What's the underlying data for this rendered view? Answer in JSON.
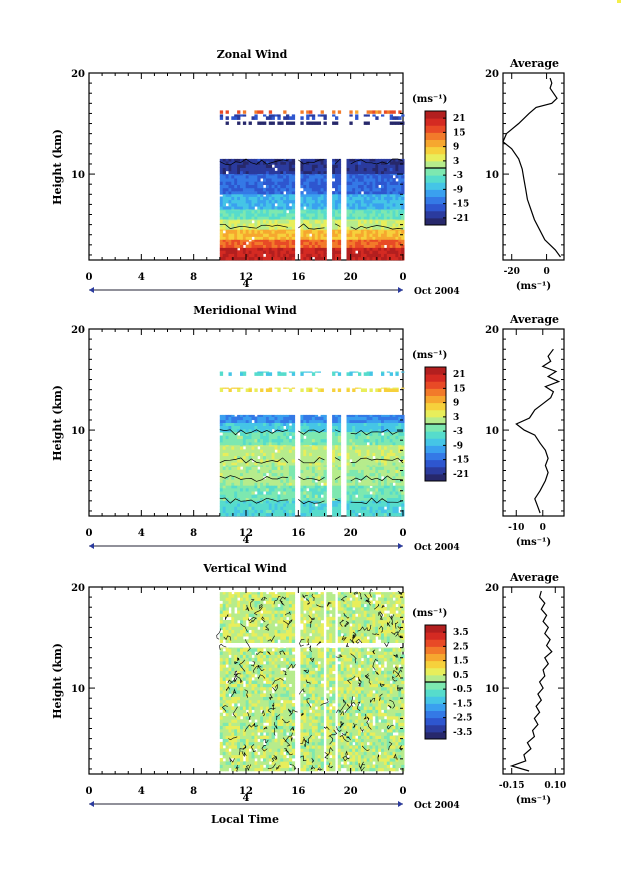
{
  "chart_data": [
    {
      "type": "heatmap",
      "title": "Zonal Wind",
      "ylabel": "Height (km)",
      "yticks": [
        "20",
        "10"
      ],
      "ylim": [
        1.5,
        20
      ],
      "xticks": [
        "0",
        "4",
        "8",
        "12",
        "16",
        "20",
        "0"
      ],
      "xlim": [
        0,
        24
      ],
      "date_marker": "4",
      "date_label": "Oct 2004",
      "colorbar": {
        "unit": "(ms⁻¹)",
        "ticks": [
          "21",
          "15",
          "9",
          "3",
          "-3",
          "-9",
          "-15",
          "-21"
        ],
        "range": [
          -24,
          24
        ],
        "zero_line": true
      },
      "data_x_start": 10,
      "data_gaps": [
        [
          15.6,
          16
        ],
        [
          18.1,
          18.5
        ],
        [
          19.2,
          19.6
        ]
      ],
      "layers": [
        {
          "from": 11.5,
          "to": 10.0,
          "value": -20
        },
        {
          "from": 10.0,
          "to": 8.0,
          "value": -15
        },
        {
          "from": 8.0,
          "to": 6.5,
          "value": -9
        },
        {
          "from": 6.5,
          "to": 5.5,
          "value": -3
        },
        {
          "from": 5.5,
          "to": 4.5,
          "value": 3
        },
        {
          "from": 4.5,
          "to": 3.5,
          "value": 9
        },
        {
          "from": 3.5,
          "to": 2.7,
          "value": 15
        },
        {
          "from": 2.7,
          "to": 1.5,
          "value": 21
        }
      ],
      "upper_layers": [
        {
          "from": 16.3,
          "to": 16.0,
          "value": 14
        },
        {
          "from": 15.9,
          "to": 15.4,
          "value": -18
        },
        {
          "from": 15.2,
          "to": 14.9,
          "value": -24
        }
      ],
      "average": {
        "title": "Average",
        "xlabel": "(ms⁻¹)",
        "xticks": [
          "-20",
          "0"
        ],
        "xlim": [
          -25,
          10
        ],
        "profile": [
          [
            1.8,
            8
          ],
          [
            2.5,
            5
          ],
          [
            3.5,
            -1
          ],
          [
            4.5,
            -4
          ],
          [
            5.5,
            -7
          ],
          [
            6.5,
            -9
          ],
          [
            7.5,
            -11
          ],
          [
            8.5,
            -12
          ],
          [
            9.5,
            -13
          ],
          [
            10.5,
            -14
          ],
          [
            11.5,
            -16
          ],
          [
            12.5,
            -20
          ],
          [
            13.2,
            -25
          ],
          [
            14,
            -23
          ],
          [
            15,
            -16
          ],
          [
            16,
            -10
          ],
          [
            16.6,
            -6
          ],
          [
            17,
            3
          ],
          [
            17.5,
            6
          ],
          [
            18,
            4
          ],
          [
            18.5,
            2
          ],
          [
            19,
            3
          ],
          [
            19.5,
            2
          ]
        ]
      }
    },
    {
      "type": "heatmap",
      "title": "Meridional Wind",
      "ylabel": "Height (km)",
      "yticks": [
        "20",
        "10"
      ],
      "ylim": [
        1.5,
        20
      ],
      "xticks": [
        "0",
        "4",
        "8",
        "12",
        "16",
        "20",
        "0"
      ],
      "xlim": [
        0,
        24
      ],
      "date_marker": "4",
      "date_label": "Oct 2004",
      "colorbar": {
        "unit": "(ms⁻¹)",
        "ticks": [
          "21",
          "15",
          "9",
          "3",
          "-3",
          "-9",
          "-15",
          "-21"
        ],
        "range": [
          -24,
          24
        ],
        "zero_line": true
      },
      "data_x_start": 10,
      "data_gaps": [
        [
          15.6,
          16
        ],
        [
          18.1,
          18.5
        ],
        [
          19.2,
          19.6
        ]
      ],
      "layers": [
        {
          "from": 11.5,
          "to": 10.7,
          "value": -12
        },
        {
          "from": 10.7,
          "to": 9.8,
          "value": -7
        },
        {
          "from": 9.8,
          "to": 8.5,
          "value": -2
        },
        {
          "from": 8.5,
          "to": 6.5,
          "value": 2
        },
        {
          "from": 6.5,
          "to": 4.5,
          "value": 1
        },
        {
          "from": 4.5,
          "to": 3.0,
          "value": -2
        },
        {
          "from": 3.0,
          "to": 1.5,
          "value": -5
        }
      ],
      "upper_layers": [
        {
          "from": 15.8,
          "to": 15.4,
          "value": -6
        },
        {
          "from": 14.2,
          "to": 13.8,
          "value": 6
        }
      ],
      "average": {
        "title": "Average",
        "xlabel": "(ms⁻¹)",
        "xticks": [
          "-10",
          "0"
        ],
        "xlim": [
          -15,
          8
        ],
        "profile": [
          [
            1.8,
            -1
          ],
          [
            2.5,
            -2
          ],
          [
            3.2,
            -3
          ],
          [
            4,
            -1
          ],
          [
            5,
            1
          ],
          [
            5.8,
            2
          ],
          [
            6.5,
            1
          ],
          [
            7.2,
            2
          ],
          [
            8,
            1
          ],
          [
            8.7,
            -1
          ],
          [
            9.5,
            -3
          ],
          [
            10,
            -7
          ],
          [
            10.6,
            -10
          ],
          [
            11.2,
            -5
          ],
          [
            12,
            -3
          ],
          [
            12.6,
            0
          ],
          [
            13.2,
            3
          ],
          [
            13.8,
            4
          ],
          [
            14.3,
            1
          ],
          [
            14.8,
            6
          ],
          [
            15.3,
            2
          ],
          [
            15.8,
            5
          ],
          [
            16.3,
            0
          ],
          [
            16.8,
            3
          ],
          [
            17.3,
            2
          ],
          [
            18,
            4
          ]
        ]
      }
    },
    {
      "type": "heatmap",
      "title": "Vertical Wind",
      "ylabel": "Height (km)",
      "yticks": [
        "20",
        "10"
      ],
      "ylim": [
        1.5,
        20
      ],
      "xticks": [
        "0",
        "4",
        "8",
        "12",
        "16",
        "20",
        "0"
      ],
      "xlim": [
        0,
        24
      ],
      "date_marker": "4",
      "date_label": "Oct 2004",
      "xlabel": "Local Time",
      "colorbar": {
        "unit": "(ms⁻¹)",
        "ticks": [
          "3.5",
          "2.5",
          "1.5",
          "0.5",
          "-0.5",
          "-1.5",
          "-2.5",
          "-3.5"
        ],
        "range": [
          -4,
          4
        ],
        "zero_line": true
      },
      "data_x_start": 10,
      "data_gaps": [
        [
          15.6,
          16
        ],
        [
          17.8,
          18.1
        ],
        [
          18.6,
          19.0
        ]
      ],
      "layers": [
        {
          "from": 19.5,
          "to": 14.5,
          "value": 0.4
        },
        {
          "from": 14.0,
          "to": 1.8,
          "value": 0.3
        }
      ],
      "average": {
        "title": "Average",
        "xlabel": "(ms⁻¹)",
        "xticks": [
          "-0.15",
          "0.10"
        ],
        "xlim": [
          -0.2,
          0.15
        ],
        "profile": [
          [
            1.8,
            -0.05
          ],
          [
            2.3,
            -0.15
          ],
          [
            2.8,
            -0.07
          ],
          [
            3.4,
            -0.08
          ],
          [
            4,
            -0.04
          ],
          [
            4.6,
            -0.06
          ],
          [
            5.2,
            -0.02
          ],
          [
            5.8,
            -0.03
          ],
          [
            6.4,
            0.0
          ],
          [
            7,
            -0.02
          ],
          [
            7.6,
            0.01
          ],
          [
            8.2,
            -0.01
          ],
          [
            8.8,
            0.02
          ],
          [
            9.4,
            0.0
          ],
          [
            10,
            0.03
          ],
          [
            10.6,
            0.01
          ],
          [
            11.2,
            0.04
          ],
          [
            11.8,
            0.03
          ],
          [
            12.4,
            0.06
          ],
          [
            13,
            0.04
          ],
          [
            13.6,
            0.08
          ],
          [
            14.2,
            0.05
          ],
          [
            14.8,
            0.07
          ],
          [
            15.4,
            0.04
          ],
          [
            16,
            0.06
          ],
          [
            16.6,
            0.03
          ],
          [
            17.2,
            0.05
          ],
          [
            17.8,
            0.02
          ],
          [
            18.4,
            0.04
          ],
          [
            19,
            0.01
          ],
          [
            19.6,
            0.02
          ]
        ]
      }
    }
  ]
}
